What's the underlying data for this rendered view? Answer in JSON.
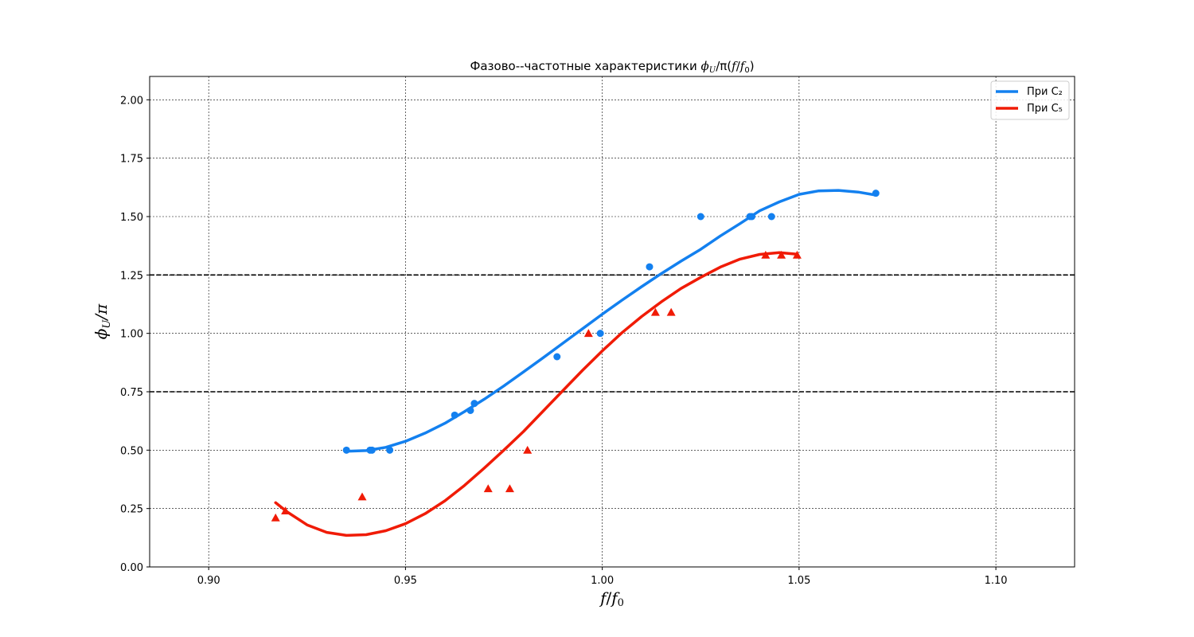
{
  "chart_data": {
    "type": "line",
    "title": "Фазово--частотные характеристики ϕ_U/π(f/f₀)",
    "title_parts": {
      "prefix": "Фазово--частотные характеристики ",
      "phi": "ϕ",
      "sub": "U",
      "rest": "/π(",
      "f": "f",
      "slash": "/",
      "f0": "f",
      "f0_sub": "0",
      "close": ")"
    },
    "xlabel": "f/f₀",
    "xlabel_parts": {
      "f": "f",
      "slash": "/",
      "f0": "f",
      "sub": "0"
    },
    "ylabel": "ϕ_U/π",
    "ylabel_parts": {
      "phi": "ϕ",
      "sub": "U",
      "rest": "/π"
    },
    "xlim": [
      0.885,
      1.12
    ],
    "ylim": [
      0.0,
      2.1
    ],
    "xticks": [
      0.9,
      0.95,
      1.0,
      1.05,
      1.1
    ],
    "xtick_labels": [
      "0.90",
      "0.95",
      "1.00",
      "1.05",
      "1.10"
    ],
    "yticks": [
      0.0,
      0.25,
      0.5,
      0.75,
      1.0,
      1.25,
      1.5,
      1.75,
      2.0
    ],
    "ytick_labels": [
      "0.00",
      "0.25",
      "0.50",
      "0.75",
      "1.00",
      "1.25",
      "1.50",
      "1.75",
      "2.00"
    ],
    "grid": true,
    "hlines": [
      0.75,
      1.25
    ],
    "legend_position": "top-right",
    "series": [
      {
        "name": "При C₂",
        "color": "#1380ef",
        "marker": "circle",
        "points": {
          "x": [
            0.935,
            0.941,
            0.9415,
            0.946,
            0.9625,
            0.9665,
            0.9675,
            0.9885,
            0.9995,
            1.012,
            1.025,
            1.0375,
            1.038,
            1.043,
            1.0695
          ],
          "y": [
            0.5,
            0.5,
            0.5,
            0.5,
            0.65,
            0.67,
            0.7,
            0.9,
            1.0,
            1.285,
            1.5,
            1.5,
            1.5,
            1.5,
            1.6
          ]
        },
        "curve": {
          "x": [
            0.935,
            0.94,
            0.945,
            0.95,
            0.955,
            0.96,
            0.965,
            0.97,
            0.975,
            0.98,
            0.985,
            0.99,
            0.995,
            1.0,
            1.005,
            1.01,
            1.015,
            1.02,
            1.025,
            1.03,
            1.035,
            1.04,
            1.045,
            1.05,
            1.055,
            1.06,
            1.065,
            1.0695
          ],
          "y": [
            0.495,
            0.498,
            0.512,
            0.538,
            0.573,
            0.615,
            0.665,
            0.718,
            0.775,
            0.835,
            0.896,
            0.958,
            1.02,
            1.082,
            1.142,
            1.2,
            1.256,
            1.309,
            1.36,
            1.417,
            1.47,
            1.525,
            1.563,
            1.595,
            1.61,
            1.612,
            1.605,
            1.592
          ]
        }
      },
      {
        "name": "При C₅",
        "color": "#f01b06",
        "marker": "triangle",
        "points": {
          "x": [
            0.917,
            0.9195,
            0.939,
            0.971,
            0.9765,
            0.981,
            0.9965,
            1.0135,
            1.0175,
            1.0415,
            1.0455,
            1.0495
          ],
          "y": [
            0.21,
            0.24,
            0.3,
            0.335,
            0.335,
            0.5,
            1.0,
            1.09,
            1.09,
            1.335,
            1.335,
            1.335
          ]
        },
        "curve": {
          "x": [
            0.917,
            0.92,
            0.925,
            0.93,
            0.935,
            0.94,
            0.945,
            0.95,
            0.955,
            0.96,
            0.965,
            0.97,
            0.975,
            0.98,
            0.985,
            0.99,
            0.995,
            1.0,
            1.005,
            1.01,
            1.015,
            1.02,
            1.025,
            1.03,
            1.035,
            1.04,
            1.045,
            1.0495
          ],
          "y": [
            0.275,
            0.235,
            0.18,
            0.148,
            0.135,
            0.138,
            0.155,
            0.185,
            0.228,
            0.283,
            0.349,
            0.423,
            0.5,
            0.58,
            0.668,
            0.755,
            0.842,
            0.925,
            1.003,
            1.072,
            1.135,
            1.192,
            1.24,
            1.284,
            1.318,
            1.338,
            1.346,
            1.339
          ]
        }
      }
    ]
  }
}
